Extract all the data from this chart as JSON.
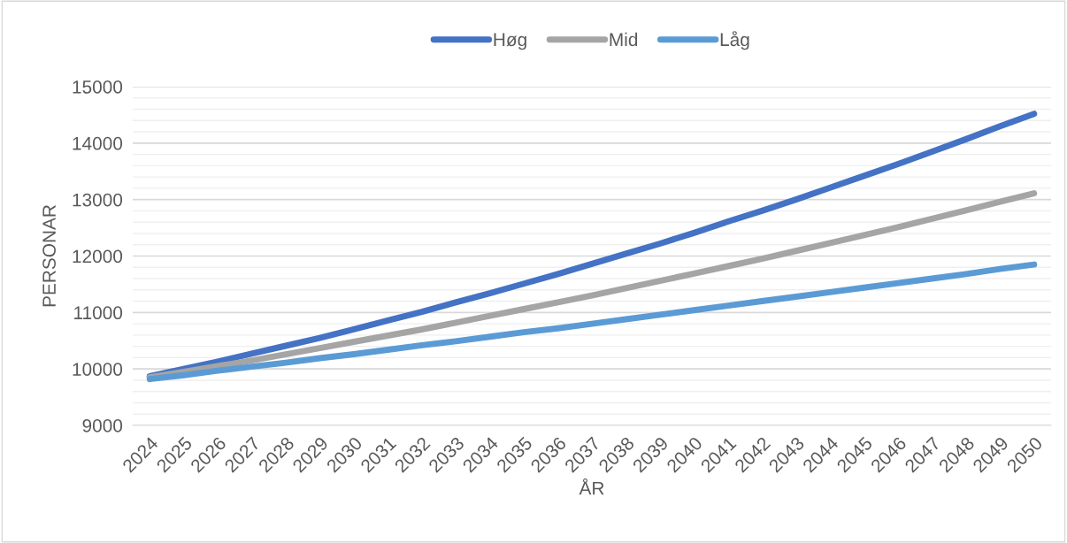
{
  "chart_data": {
    "type": "line",
    "xlabel": "ÅR",
    "ylabel": "PERSONAR",
    "categories": [
      "2024",
      "2025",
      "2026",
      "2027",
      "2028",
      "2029",
      "2030",
      "2031",
      "2032",
      "2033",
      "2034",
      "2035",
      "2036",
      "2037",
      "2038",
      "2039",
      "2040",
      "2041",
      "2042",
      "2043",
      "2044",
      "2045",
      "2046",
      "2047",
      "2048",
      "2049",
      "2050"
    ],
    "series": [
      {
        "name": "Høg",
        "color": "#4472c4",
        "values": [
          9870,
          10000,
          10130,
          10270,
          10410,
          10550,
          10700,
          10860,
          11010,
          11180,
          11340,
          11510,
          11680,
          11860,
          12040,
          12220,
          12410,
          12610,
          12800,
          13000,
          13210,
          13420,
          13630,
          13850,
          14070,
          14300,
          14520
        ]
      },
      {
        "name": "Mid",
        "color": "#a5a5a5",
        "values": [
          9850,
          9950,
          10050,
          10150,
          10260,
          10370,
          10480,
          10590,
          10700,
          10820,
          10940,
          11060,
          11180,
          11300,
          11430,
          11560,
          11690,
          11820,
          11950,
          12090,
          12230,
          12370,
          12510,
          12660,
          12810,
          12960,
          13110
        ]
      },
      {
        "name": "Låg",
        "color": "#5b9bd5",
        "values": [
          9820,
          9890,
          9970,
          10040,
          10110,
          10190,
          10260,
          10340,
          10420,
          10490,
          10570,
          10650,
          10720,
          10800,
          10880,
          10960,
          11040,
          11120,
          11200,
          11280,
          11360,
          11440,
          11520,
          11600,
          11680,
          11770,
          11850
        ]
      }
    ],
    "ylim": [
      9000,
      15000
    ],
    "yticks": [
      9000,
      {
        "value": 9200,
        "label": null
      },
      {
        "value": 9400,
        "label": null
      },
      {
        "value": 9600,
        "label": null
      },
      {
        "value": 9800,
        "label": null
      },
      10000,
      {
        "value": 10200,
        "label": null
      },
      {
        "value": 10400,
        "label": null
      },
      {
        "value": 10600,
        "label": null
      },
      {
        "value": 10800,
        "label": null
      },
      11000,
      {
        "value": 11200,
        "label": null
      },
      {
        "value": 11400,
        "label": null
      },
      {
        "value": 11600,
        "label": null
      },
      {
        "value": 11800,
        "label": null
      },
      12000,
      {
        "value": 12200,
        "label": null
      },
      {
        "value": 12400,
        "label": null
      },
      {
        "value": 12600,
        "label": null
      },
      {
        "value": 12800,
        "label": null
      },
      13000,
      {
        "value": 13200,
        "label": null
      },
      {
        "value": 13400,
        "label": null
      },
      {
        "value": 13600,
        "label": null
      },
      {
        "value": 13800,
        "label": null
      },
      14000,
      {
        "value": 14200,
        "label": null
      },
      {
        "value": 14400,
        "label": null
      },
      {
        "value": 14600,
        "label": null
      },
      {
        "value": 14800,
        "label": null
      },
      15000
    ],
    "grid": "y",
    "legend": "top",
    "marker": "none",
    "line_style": "solid"
  }
}
